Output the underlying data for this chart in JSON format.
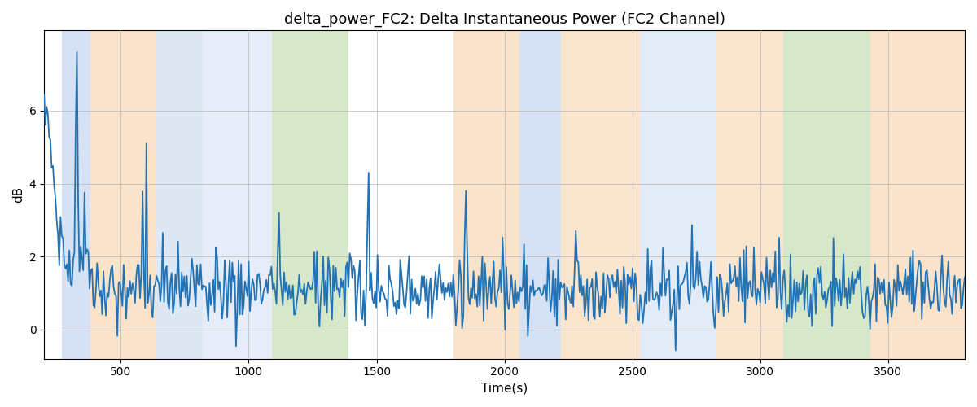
{
  "title": "delta_power_FC2: Delta Instantaneous Power (FC2 Channel)",
  "xlabel": "Time(s)",
  "ylabel": "dB",
  "xlim": [
    200,
    3800
  ],
  "ylim": [
    -0.8,
    8.2
  ],
  "x_start": 200,
  "x_end": 3800,
  "num_points": 730,
  "seed": 42,
  "bg_bands": [
    {
      "xmin": 270,
      "xmax": 380,
      "color": "#aec6e8",
      "alpha": 0.5
    },
    {
      "xmin": 380,
      "xmax": 640,
      "color": "#f5c896",
      "alpha": 0.5
    },
    {
      "xmin": 640,
      "xmax": 820,
      "color": "#aec6e8",
      "alpha": 0.4
    },
    {
      "xmin": 820,
      "xmax": 1090,
      "color": "#aec6e8",
      "alpha": 0.3
    },
    {
      "xmin": 1090,
      "xmax": 1390,
      "color": "#b5d5a0",
      "alpha": 0.55
    },
    {
      "xmin": 1800,
      "xmax": 2060,
      "color": "#f5c896",
      "alpha": 0.5
    },
    {
      "xmin": 2060,
      "xmax": 2220,
      "color": "#aec6e8",
      "alpha": 0.5
    },
    {
      "xmin": 2220,
      "xmax": 2530,
      "color": "#f5c896",
      "alpha": 0.45
    },
    {
      "xmin": 2530,
      "xmax": 2830,
      "color": "#aec6e8",
      "alpha": 0.35
    },
    {
      "xmin": 2830,
      "xmax": 3090,
      "color": "#f5c896",
      "alpha": 0.45
    },
    {
      "xmin": 3090,
      "xmax": 3430,
      "color": "#b5d5a0",
      "alpha": 0.55
    },
    {
      "xmin": 3430,
      "xmax": 3800,
      "color": "#f5c896",
      "alpha": 0.5
    }
  ],
  "line_color": "#2272b4",
  "line_width": 1.3,
  "grid_color": "#aaaaaa",
  "grid_alpha": 0.6,
  "title_fontsize": 13,
  "axis_label_fontsize": 11,
  "tick_fontsize": 10,
  "yticks": [
    0,
    2,
    4,
    6
  ],
  "xticks": [
    500,
    1000,
    1500,
    2000,
    2500,
    3000,
    3500
  ]
}
